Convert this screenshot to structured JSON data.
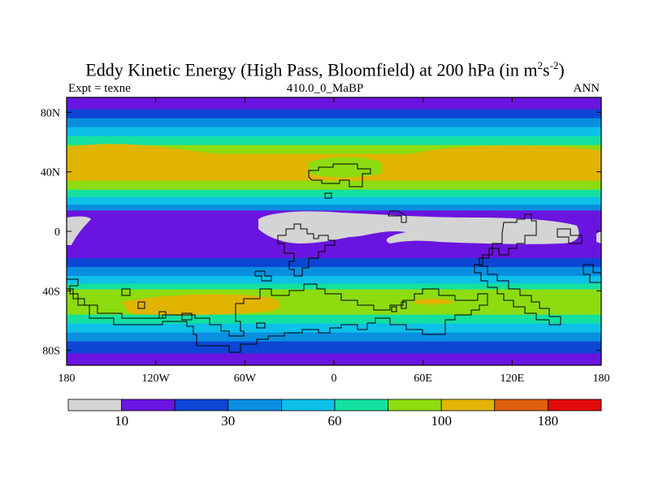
{
  "title_text": "Eddy Kinetic Energy (High Pass, Bloomfield) at 200 hPa (in m",
  "title_sup1": "2",
  "title_mid": "s",
  "title_sup2": "-2",
  "title_close": ")",
  "left_label": "Expt = texne",
  "center_label": "410.0_0_MaBP",
  "right_label": "ANN",
  "lat_ticks": [
    {
      "label": "80N",
      "lat": 80
    },
    {
      "label": "40N",
      "lat": 40
    },
    {
      "label": "0",
      "lat": 0
    },
    {
      "label": "40S",
      "lat": -40
    },
    {
      "label": "80S",
      "lat": -80
    }
  ],
  "lon_ticks": [
    {
      "label": "180",
      "lon": -180
    },
    {
      "label": "120W",
      "lon": -120
    },
    {
      "label": "60W",
      "lon": -60
    },
    {
      "label": "0",
      "lon": 0
    },
    {
      "label": "60E",
      "lon": 60
    },
    {
      "label": "120E",
      "lon": 120
    },
    {
      "label": "180",
      "lon": 180
    }
  ],
  "colorbar": {
    "colors": [
      "#d4d4d4",
      "#6a14e0",
      "#0d46d4",
      "#0a8fe0",
      "#0cc0e8",
      "#14e0a0",
      "#8cdc10",
      "#e0b400",
      "#e06010",
      "#e00a0a"
    ],
    "labels": [
      {
        "text": "10",
        "boundary": 1
      },
      {
        "text": "30",
        "boundary": 3
      },
      {
        "text": "60",
        "boundary": 5
      },
      {
        "text": "100",
        "boundary": 7
      },
      {
        "text": "180",
        "boundary": 9
      }
    ]
  },
  "bands": [
    {
      "lat_top": 90,
      "lat_bot": 82,
      "color": "#6a14e0"
    },
    {
      "lat_top": 82,
      "lat_bot": 76,
      "color": "#0d46d4"
    },
    {
      "lat_top": 76,
      "lat_bot": 70,
      "color": "#0a8fe0"
    },
    {
      "lat_top": 70,
      "lat_bot": 64,
      "color": "#0cc0e8"
    },
    {
      "lat_top": 64,
      "lat_bot": 58,
      "color": "#14e0a0"
    },
    {
      "lat_top": 58,
      "lat_bot": 52,
      "color": "#8cdc10"
    },
    {
      "lat_top": 52,
      "lat_bot": 34,
      "color": "#e0b400"
    },
    {
      "lat_top": 34,
      "lat_bot": 28,
      "color": "#8cdc10"
    },
    {
      "lat_top": 28,
      "lat_bot": 23,
      "color": "#14e0a0"
    },
    {
      "lat_top": 23,
      "lat_bot": 18,
      "color": "#0cc0e8"
    },
    {
      "lat_top": 18,
      "lat_bot": 14,
      "color": "#0a8fe0"
    },
    {
      "lat_top": 14,
      "lat_bot": -18,
      "color": "#6a14e0"
    },
    {
      "lat_top": -18,
      "lat_bot": -24,
      "color": "#0d46d4"
    },
    {
      "lat_top": -24,
      "lat_bot": -30,
      "color": "#0a8fe0"
    },
    {
      "lat_top": -30,
      "lat_bot": -35,
      "color": "#0cc0e8"
    },
    {
      "lat_top": -35,
      "lat_bot": -39,
      "color": "#14e0a0"
    },
    {
      "lat_top": -39,
      "lat_bot": -56,
      "color": "#8cdc10"
    },
    {
      "lat_top": -56,
      "lat_bot": -62,
      "color": "#14e0a0"
    },
    {
      "lat_top": -62,
      "lat_bot": -68,
      "color": "#0cc0e8"
    },
    {
      "lat_top": -68,
      "lat_bot": -74,
      "color": "#0a8fe0"
    },
    {
      "lat_top": -74,
      "lat_bot": -82,
      "color": "#0d46d4"
    },
    {
      "lat_top": -82,
      "lat_bot": -90,
      "color": "#6a14e0"
    }
  ]
}
